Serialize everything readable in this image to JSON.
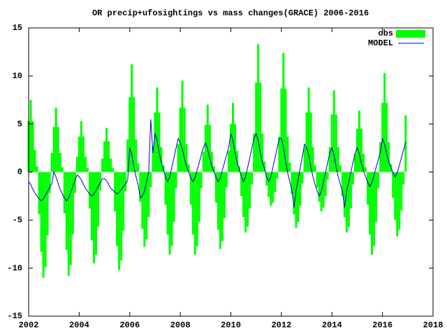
{
  "chart_data": {
    "type": "bar",
    "title": "OR precip+ufosightings vs mass changes(GRACE) 2006-2016",
    "xlim": [
      2002,
      2018
    ],
    "xticks": [
      2002,
      2004,
      2006,
      2008,
      2010,
      2012,
      2014,
      2016,
      2018
    ],
    "ylim": [
      -15,
      15
    ],
    "yticks": [
      -15,
      -10,
      -5,
      0,
      5,
      10,
      15
    ],
    "legend": "top-right",
    "x": [
      2002.0,
      2002.083,
      2002.167,
      2002.25,
      2002.333,
      2002.417,
      2002.5,
      2002.583,
      2002.667,
      2002.75,
      2002.833,
      2002.917,
      2003.0,
      2003.083,
      2003.167,
      2003.25,
      2003.333,
      2003.417,
      2003.5,
      2003.583,
      2003.667,
      2003.75,
      2003.833,
      2003.917,
      2004.0,
      2004.083,
      2004.167,
      2004.25,
      2004.333,
      2004.417,
      2004.5,
      2004.583,
      2004.667,
      2004.75,
      2004.833,
      2004.917,
      2005.0,
      2005.083,
      2005.167,
      2005.25,
      2005.333,
      2005.417,
      2005.5,
      2005.583,
      2005.667,
      2005.75,
      2005.833,
      2005.917,
      2006.0,
      2006.083,
      2006.167,
      2006.25,
      2006.333,
      2006.417,
      2006.5,
      2006.583,
      2006.667,
      2006.75,
      2006.833,
      2006.917,
      2007.0,
      2007.083,
      2007.167,
      2007.25,
      2007.333,
      2007.417,
      2007.5,
      2007.583,
      2007.667,
      2007.75,
      2007.833,
      2007.917,
      2008.0,
      2008.083,
      2008.167,
      2008.25,
      2008.333,
      2008.417,
      2008.5,
      2008.583,
      2008.667,
      2008.75,
      2008.833,
      2008.917,
      2009.0,
      2009.083,
      2009.167,
      2009.25,
      2009.333,
      2009.417,
      2009.5,
      2009.583,
      2009.667,
      2009.75,
      2009.833,
      2009.917,
      2010.0,
      2010.083,
      2010.167,
      2010.25,
      2010.333,
      2010.417,
      2010.5,
      2010.583,
      2010.667,
      2010.75,
      2010.833,
      2010.917,
      2011.0,
      2011.083,
      2011.167,
      2011.25,
      2011.333,
      2011.417,
      2011.5,
      2011.583,
      2011.667,
      2011.75,
      2011.833,
      2011.917,
      2012.0,
      2012.083,
      2012.167,
      2012.25,
      2012.333,
      2012.417,
      2012.5,
      2012.583,
      2012.667,
      2012.75,
      2012.833,
      2012.917,
      2013.0,
      2013.083,
      2013.167,
      2013.25,
      2013.333,
      2013.417,
      2013.5,
      2013.583,
      2013.667,
      2013.75,
      2013.833,
      2013.917,
      2014.0,
      2014.083,
      2014.167,
      2014.25,
      2014.333,
      2014.417,
      2014.5,
      2014.583,
      2014.667,
      2014.75,
      2014.833,
      2014.917,
      2015.0,
      2015.083,
      2015.167,
      2015.25,
      2015.333,
      2015.417,
      2015.5,
      2015.583,
      2015.667,
      2015.75,
      2015.833,
      2015.917,
      2016.0,
      2016.083,
      2016.167,
      2016.25,
      2016.333,
      2016.417,
      2016.5,
      2016.583,
      2016.667,
      2016.75,
      2016.833,
      2016.917
    ],
    "series": [
      {
        "name": "obs",
        "type": "bar",
        "color": "#00ff00",
        "values": [
          5.3,
          7.5,
          5.3,
          2.3,
          0.6,
          -4.4,
          -8.3,
          -11,
          -9.9,
          -6.6,
          -2.2,
          2.0,
          4.7,
          6.7,
          4.7,
          2.0,
          0.5,
          -4.3,
          -8.1,
          -10.8,
          -9.7,
          -6.5,
          -2.2,
          1.6,
          3.7,
          5.3,
          3.7,
          1.6,
          0.4,
          -3.8,
          -7.1,
          -9.5,
          -8.6,
          -5.7,
          -1.9,
          1.4,
          3.2,
          4.6,
          3.2,
          1.4,
          0.4,
          -4.1,
          -7.7,
          -10.2,
          -9.2,
          -6.1,
          -2.0,
          3.4,
          7.8,
          11.2,
          7.8,
          3.4,
          0.9,
          -3.1,
          -5.9,
          -7.8,
          -7.0,
          -4.7,
          -1.6,
          2.6,
          6.2,
          8.8,
          6.2,
          2.6,
          0.7,
          -3.4,
          -6.5,
          -8.6,
          -7.7,
          -5.2,
          -1.7,
          2.9,
          6.7,
          9.5,
          6.7,
          2.9,
          0.8,
          -3.4,
          -6.5,
          -8.6,
          -7.7,
          -5.2,
          -1.7,
          2.1,
          4.9,
          7.0,
          4.9,
          2.1,
          0.6,
          -3.2,
          -6.0,
          -8.0,
          -7.2,
          -4.8,
          -1.6,
          2.2,
          5.0,
          7.2,
          5.0,
          2.2,
          0.6,
          -2.5,
          -4.7,
          -6.3,
          -5.7,
          -3.8,
          -1.3,
          4.0,
          9.3,
          13.3,
          9.3,
          4.0,
          1.1,
          -1.4,
          -2.6,
          -3.5,
          -3.2,
          -2.1,
          -0.7,
          3.7,
          8.7,
          12.4,
          8.7,
          3.7,
          1.0,
          -2.3,
          -4.4,
          -5.8,
          -5.2,
          -3.5,
          -1.2,
          2.6,
          6.2,
          8.8,
          6.2,
          2.6,
          0.7,
          -1.6,
          -3.1,
          -4.1,
          -3.7,
          -2.5,
          -0.8,
          2.6,
          6.0,
          8.5,
          6.0,
          2.6,
          0.7,
          -2.5,
          -4.7,
          -6.3,
          -5.7,
          -3.8,
          -1.3,
          1.9,
          4.5,
          6.4,
          4.5,
          1.9,
          0.5,
          -3.4,
          -6.5,
          -8.6,
          -7.7,
          -5.2,
          -1.7,
          3.1,
          7.2,
          10.3,
          7.2,
          3.1,
          0.8,
          -2.7,
          -5.0,
          -6.7,
          -6.0,
          -4.0,
          -1.3,
          5.9
        ]
      },
      {
        "name": "MODEL",
        "type": "line",
        "color": "#0000cd",
        "values": [
          -1,
          -1.3,
          -1.8,
          -2.2,
          -2.5,
          -2.8,
          -3,
          -2.8,
          -2.4,
          -2,
          -1.6,
          -1.2,
          0,
          -0.5,
          -1.2,
          -1.8,
          -2.3,
          -2.7,
          -3,
          -2.7,
          -2.1,
          -1.5,
          -0.9,
          -0.3,
          -0.5,
          -0.8,
          -1.3,
          -1.7,
          -2,
          -2.3,
          -2.5,
          -2.3,
          -1.9,
          -1.5,
          -1.1,
          -0.7,
          -0.7,
          -0.9,
          -1.3,
          -1.7,
          -1.9,
          -2.1,
          -2.3,
          -2.1,
          -1.8,
          -1.5,
          -1.2,
          -0.9,
          2.5,
          1.8,
          0.5,
          -0.5,
          -1.3,
          -2.7,
          -2.5,
          -2,
          -1,
          0,
          5.5,
          2,
          4,
          3.3,
          2,
          1,
          0.3,
          -0.5,
          -1,
          -0.5,
          0.5,
          1.5,
          2.5,
          3.5,
          3,
          2.4,
          1.4,
          0.6,
          0,
          -0.6,
          -1,
          -0.6,
          0.2,
          1,
          1.8,
          2.6,
          3,
          2.4,
          1.4,
          0.6,
          0,
          -0.6,
          -1,
          -0.6,
          0.2,
          1,
          1.8,
          2.6,
          4,
          3.3,
          2,
          1,
          0.3,
          -0.5,
          -1,
          -0.5,
          0.5,
          1.5,
          2.5,
          3.5,
          4,
          3.3,
          2,
          1,
          0.3,
          -0.5,
          -1,
          -0.5,
          0.5,
          1.5,
          2.5,
          3.5,
          3.5,
          2.6,
          1.1,
          -0.1,
          -1,
          -1.9,
          -3.7,
          -1.9,
          -0.7,
          0.5,
          1.7,
          2.9,
          2.5,
          1.8,
          0.5,
          -0.5,
          -1.3,
          -2,
          -2.5,
          -2,
          -1,
          0,
          1,
          2,
          2.5,
          1.8,
          0.5,
          -0.5,
          -1.3,
          -2,
          -3.7,
          -2,
          -1,
          0,
          1,
          2,
          2.5,
          1.9,
          0.9,
          0.1,
          -0.5,
          -1.1,
          -1.5,
          -1.1,
          -0.3,
          0.5,
          1.3,
          2.1,
          3.5,
          2.9,
          1.9,
          1.1,
          0.5,
          -0.1,
          -0.5,
          -0.1,
          0.7,
          1.5,
          2.3,
          3.1
        ]
      }
    ]
  }
}
